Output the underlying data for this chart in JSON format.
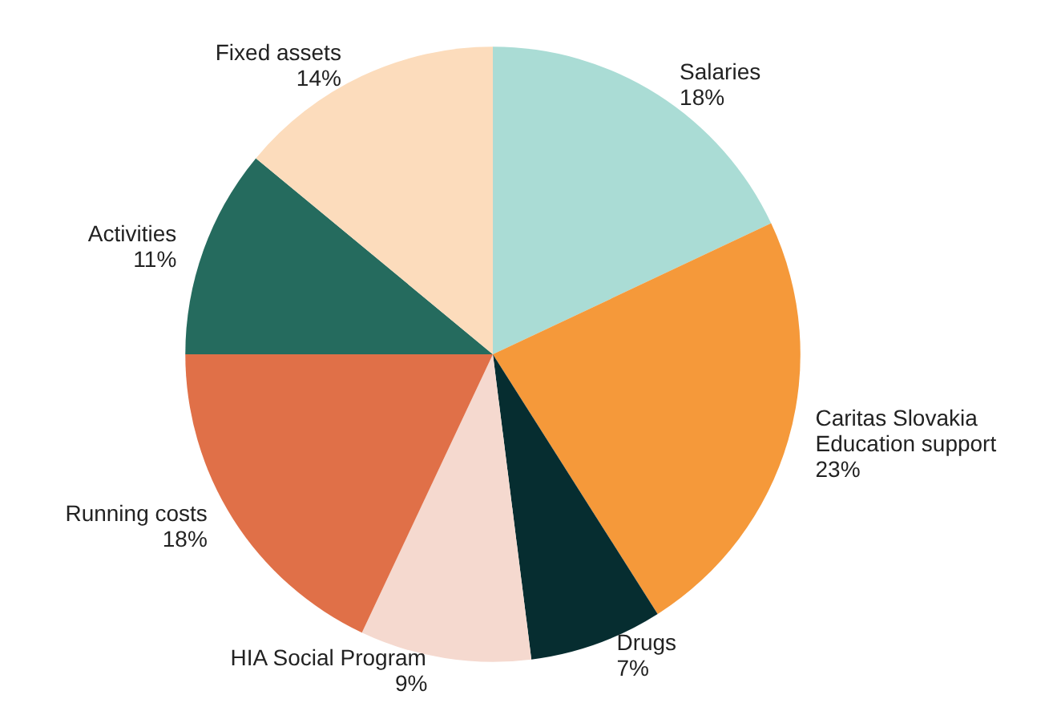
{
  "chart_data": {
    "type": "pie",
    "categories": [
      "Salaries",
      "Caritas Slovakia\nEducation support",
      "Drugs",
      "HIA Social Program",
      "Running costs",
      "Activities",
      "Fixed assets"
    ],
    "values": [
      18,
      23,
      7,
      9,
      18,
      11,
      14
    ],
    "colors": [
      "#aadcd5",
      "#f5993a",
      "#062d30",
      "#f5d9cf",
      "#e07048",
      "#256b5e",
      "#fcdcbc"
    ],
    "value_labels": [
      "18%",
      "23%",
      "7%",
      "9%",
      "18%",
      "11%",
      "14%"
    ]
  }
}
